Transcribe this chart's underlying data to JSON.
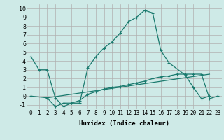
{
  "xlabel": "Humidex (Indice chaleur)",
  "bg_color": "#ceeae7",
  "grid_color": "#b0b0b0",
  "line_color": "#1a7a6e",
  "xlim": [
    -0.5,
    23.5
  ],
  "ylim": [
    -1.5,
    10.5
  ],
  "xticks": [
    0,
    1,
    2,
    3,
    4,
    5,
    6,
    7,
    8,
    9,
    10,
    11,
    12,
    13,
    14,
    15,
    16,
    17,
    18,
    19,
    20,
    21,
    22,
    23
  ],
  "yticks": [
    -1,
    0,
    1,
    2,
    3,
    4,
    5,
    6,
    7,
    8,
    9,
    10
  ],
  "curve1_x": [
    0,
    1,
    2,
    3,
    4,
    5,
    6,
    7,
    8,
    9,
    10,
    11,
    12,
    13,
    14,
    15,
    16,
    17,
    19,
    20,
    21,
    22
  ],
  "curve1_y": [
    4.5,
    3.0,
    3.0,
    -0.2,
    -1.2,
    -0.8,
    -0.8,
    3.2,
    4.5,
    5.5,
    6.2,
    7.2,
    8.5,
    9.0,
    9.8,
    9.5,
    5.2,
    3.8,
    2.4,
    1.0,
    -0.3,
    0.0
  ],
  "curve2_x": [
    0,
    2,
    3,
    4,
    5,
    6,
    7,
    8,
    9,
    10,
    11,
    12,
    13,
    14,
    15,
    16,
    17,
    18,
    19,
    20,
    21,
    22,
    23
  ],
  "curve2_y": [
    0.0,
    -0.2,
    -1.2,
    -0.8,
    -0.8,
    -0.5,
    0.2,
    0.5,
    0.8,
    1.0,
    1.1,
    1.3,
    1.5,
    1.7,
    2.0,
    2.2,
    2.3,
    2.5,
    2.5,
    2.5,
    2.5,
    -0.3,
    0.0
  ],
  "curve3_x": [
    2,
    22
  ],
  "curve3_y": [
    -0.2,
    2.5
  ],
  "tick_fontsize": 5.5,
  "xlabel_fontsize": 6.5
}
